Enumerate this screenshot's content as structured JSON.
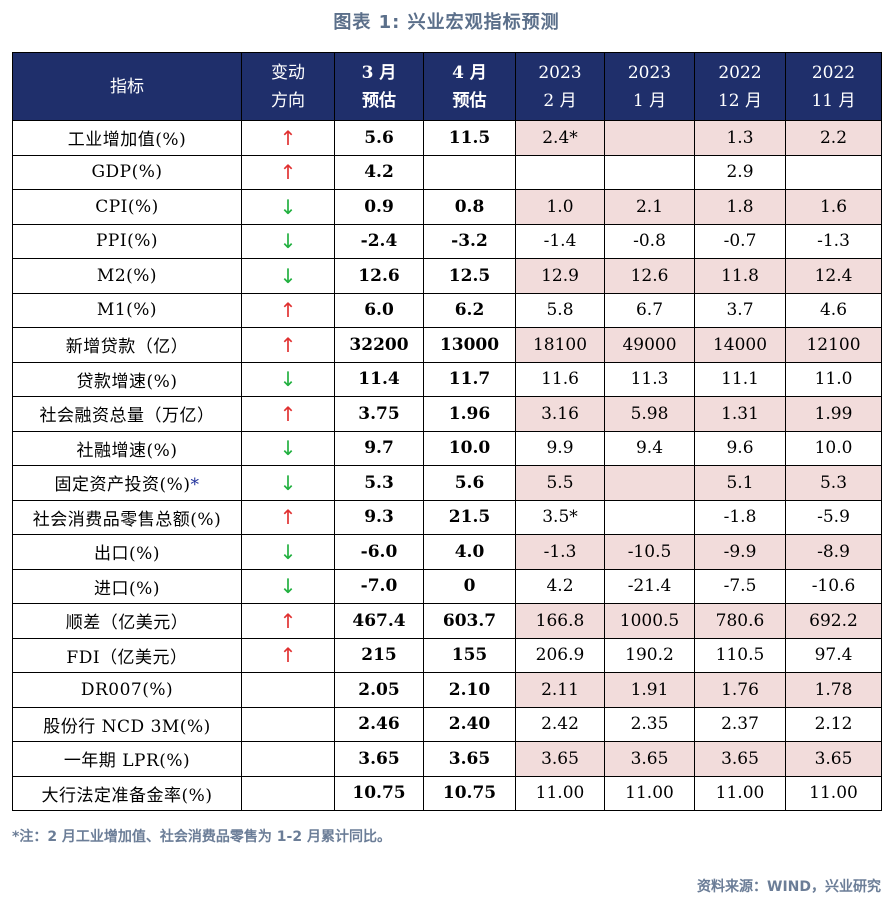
{
  "title": "图表 1:  兴业宏观指标预测",
  "headers": {
    "indicator": "指标",
    "direction": [
      "变动",
      "方向"
    ],
    "mar": [
      "3 月",
      "预估"
    ],
    "apr": [
      "4 月",
      "预估"
    ],
    "c1": [
      "2023",
      "2 月"
    ],
    "c2": [
      "2023",
      "1 月"
    ],
    "c3": [
      "2022",
      "12 月"
    ],
    "c4": [
      "2022",
      "11 月"
    ]
  },
  "colors": {
    "header_bg": "#1f2f6b",
    "pink": "#f2dcdb",
    "up": "#e03030",
    "down": "#22b040"
  },
  "rows": [
    {
      "name": "工业增加值(%)",
      "dir": "↑",
      "mar": "5.6",
      "apr": "11.5",
      "v": [
        "2.4*",
        "",
        "1.3",
        "2.2"
      ]
    },
    {
      "name": "GDP(%)",
      "dir": "↑",
      "mar": "4.2",
      "apr": "",
      "v": [
        "",
        "",
        "2.9",
        ""
      ]
    },
    {
      "name": "CPI(%)",
      "dir": "↓",
      "mar": "0.9",
      "apr": "0.8",
      "v": [
        "1.0",
        "2.1",
        "1.8",
        "1.6"
      ]
    },
    {
      "name": "PPI(%)",
      "dir": "↓",
      "mar": "-2.4",
      "apr": "-3.2",
      "v": [
        "-1.4",
        "-0.8",
        "-0.7",
        "-1.3"
      ]
    },
    {
      "name": "M2(%)",
      "dir": "↓",
      "mar": "12.6",
      "apr": "12.5",
      "v": [
        "12.9",
        "12.6",
        "11.8",
        "12.4"
      ]
    },
    {
      "name": "M1(%)",
      "dir": "↑",
      "mar": "6.0",
      "apr": "6.2",
      "v": [
        "5.8",
        "6.7",
        "3.7",
        "4.6"
      ]
    },
    {
      "name": "新增贷款（亿）",
      "dir": "↑",
      "mar": "32200",
      "apr": "13000",
      "v": [
        "18100",
        "49000",
        "14000",
        "12100"
      ]
    },
    {
      "name": "贷款增速(%)",
      "dir": "↓",
      "mar": "11.4",
      "apr": "11.7",
      "v": [
        "11.6",
        "11.3",
        "11.1",
        "11.0"
      ]
    },
    {
      "name": "社会融资总量（万亿）",
      "dir": "↑",
      "mar": "3.75",
      "apr": "1.96",
      "v": [
        "3.16",
        "5.98",
        "1.31",
        "1.99"
      ]
    },
    {
      "name": "社融增速(%)",
      "dir": "↓",
      "mar": "9.7",
      "apr": "10.0",
      "v": [
        "9.9",
        "9.4",
        "9.6",
        "10.0"
      ]
    },
    {
      "name": "固定资产投资(%)",
      "star": "*",
      "dir": "↓",
      "mar": "5.3",
      "apr": "5.6",
      "v": [
        "5.5",
        "",
        "5.1",
        "5.3"
      ]
    },
    {
      "name": "社会消费品零售总额(%)",
      "dir": "↑",
      "mar": "9.3",
      "apr": "21.5",
      "v": [
        "3.5*",
        "",
        "-1.8",
        "-5.9"
      ]
    },
    {
      "name": "出口(%)",
      "dir": "↓",
      "mar": "-6.0",
      "apr": "4.0",
      "v": [
        "-1.3",
        "-10.5",
        "-9.9",
        "-8.9"
      ]
    },
    {
      "name": "进口(%)",
      "dir": "↓",
      "mar": "-7.0",
      "apr": "0",
      "v": [
        "4.2",
        "-21.4",
        "-7.5",
        "-10.6"
      ]
    },
    {
      "name": "顺差（亿美元）",
      "dir": "↑",
      "mar": "467.4",
      "apr": "603.7",
      "v": [
        "166.8",
        "1000.5",
        "780.6",
        "692.2"
      ]
    },
    {
      "name": "FDI（亿美元）",
      "dir": "↑",
      "mar": "215",
      "apr": "155",
      "v": [
        "206.9",
        "190.2",
        "110.5",
        "97.4"
      ]
    },
    {
      "name": "DR007(%)",
      "dir": "",
      "mar": "2.05",
      "apr": "2.10",
      "v": [
        "2.11",
        "1.91",
        "1.76",
        "1.78"
      ]
    },
    {
      "name": "股份行 NCD 3M(%)",
      "dir": "",
      "mar": "2.46",
      "apr": "2.40",
      "v": [
        "2.42",
        "2.35",
        "2.37",
        "2.12"
      ]
    },
    {
      "name": "一年期 LPR(%)",
      "dir": "",
      "mar": "3.65",
      "apr": "3.65",
      "v": [
        "3.65",
        "3.65",
        "3.65",
        "3.65"
      ]
    },
    {
      "name": "大行法定准备金率(%)",
      "dir": "",
      "mar": "10.75",
      "apr": "10.75",
      "v": [
        "11.00",
        "11.00",
        "11.00",
        "11.00"
      ]
    }
  ],
  "note": "*注：2 月工业增加值、社会消费品零售为 1-2 月累计同比。",
  "source": "资料来源：WIND，兴业研究"
}
